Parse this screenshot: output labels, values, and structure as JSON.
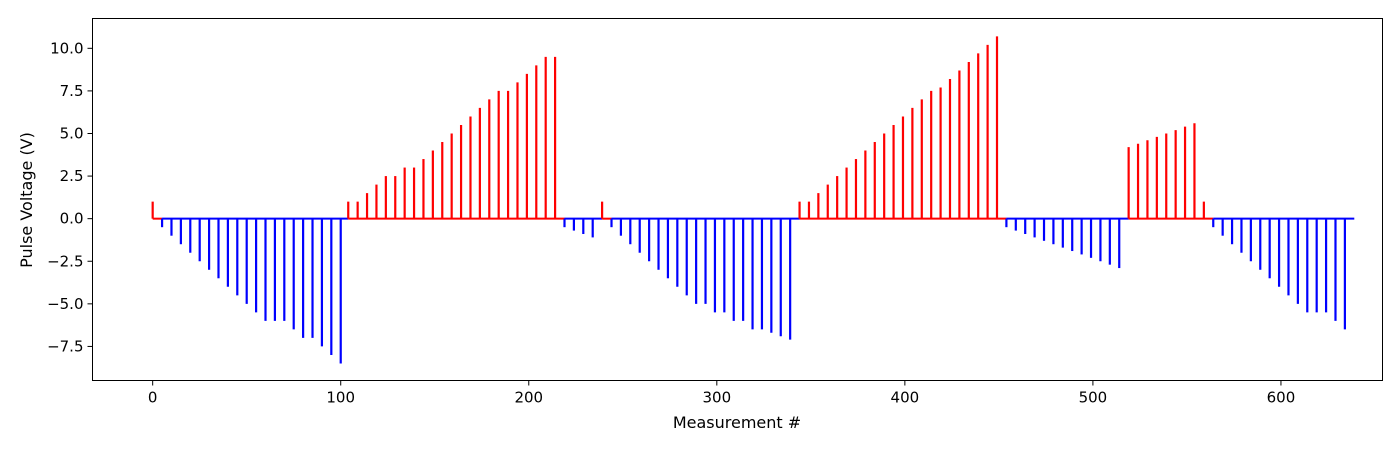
{
  "chart_data": {
    "type": "bar",
    "xlabel": "Measurement #",
    "ylabel": "Pulse Voltage (V)",
    "xlim": [
      -32,
      654
    ],
    "ylim": [
      -9.5,
      11.75
    ],
    "xticks": [
      0,
      100,
      200,
      300,
      400,
      500,
      600
    ],
    "xtick_labels": [
      "0",
      "100",
      "200",
      "300",
      "400",
      "500",
      "600"
    ],
    "yticks": [
      -7.5,
      -5.0,
      -2.5,
      0.0,
      2.5,
      5.0,
      7.5,
      10.0
    ],
    "ytick_labels": [
      "−7.5",
      "−5.0",
      "−2.5",
      "0.0",
      "2.5",
      "5.0",
      "7.5",
      "10.0"
    ],
    "grid": false,
    "colors": {
      "positive": "#ff0000",
      "negative": "#0000ff"
    },
    "baseline_segments": [
      {
        "x0": 0,
        "x1": 5,
        "color": "#ff0000"
      },
      {
        "x0": 5,
        "x1": 104,
        "color": "#0000ff"
      },
      {
        "x0": 104,
        "x1": 219,
        "color": "#ff0000"
      },
      {
        "x0": 219,
        "x1": 239,
        "color": "#0000ff"
      },
      {
        "x0": 239,
        "x1": 244,
        "color": "#ff0000"
      },
      {
        "x0": 244,
        "x1": 344,
        "color": "#0000ff"
      },
      {
        "x0": 344,
        "x1": 454,
        "color": "#ff0000"
      },
      {
        "x0": 454,
        "x1": 519,
        "color": "#0000ff"
      },
      {
        "x0": 519,
        "x1": 564,
        "color": "#ff0000"
      },
      {
        "x0": 564,
        "x1": 639,
        "color": "#0000ff"
      }
    ],
    "pulses": [
      {
        "x": 0,
        "y": 1.0
      },
      {
        "x": 5,
        "y": -0.5
      },
      {
        "x": 10,
        "y": -1.0
      },
      {
        "x": 15,
        "y": -1.5
      },
      {
        "x": 20,
        "y": -2.0
      },
      {
        "x": 25,
        "y": -2.5
      },
      {
        "x": 30,
        "y": -3.0
      },
      {
        "x": 35,
        "y": -3.5
      },
      {
        "x": 40,
        "y": -4.0
      },
      {
        "x": 45,
        "y": -4.5
      },
      {
        "x": 50,
        "y": -5.0
      },
      {
        "x": 55,
        "y": -5.5
      },
      {
        "x": 60,
        "y": -6.0
      },
      {
        "x": 65,
        "y": -6.0
      },
      {
        "x": 70,
        "y": -6.0
      },
      {
        "x": 75,
        "y": -6.5
      },
      {
        "x": 80,
        "y": -7.0
      },
      {
        "x": 85,
        "y": -7.0
      },
      {
        "x": 90,
        "y": -7.5
      },
      {
        "x": 95,
        "y": -8.0
      },
      {
        "x": 100,
        "y": -8.5
      },
      {
        "x": 104,
        "y": 1.0
      },
      {
        "x": 109,
        "y": 1.0
      },
      {
        "x": 114,
        "y": 1.5
      },
      {
        "x": 119,
        "y": 2.0
      },
      {
        "x": 124,
        "y": 2.5
      },
      {
        "x": 129,
        "y": 2.5
      },
      {
        "x": 134,
        "y": 3.0
      },
      {
        "x": 139,
        "y": 3.0
      },
      {
        "x": 144,
        "y": 3.5
      },
      {
        "x": 149,
        "y": 4.0
      },
      {
        "x": 154,
        "y": 4.5
      },
      {
        "x": 159,
        "y": 5.0
      },
      {
        "x": 164,
        "y": 5.5
      },
      {
        "x": 169,
        "y": 6.0
      },
      {
        "x": 174,
        "y": 6.5
      },
      {
        "x": 179,
        "y": 7.0
      },
      {
        "x": 184,
        "y": 7.5
      },
      {
        "x": 189,
        "y": 7.5
      },
      {
        "x": 194,
        "y": 8.0
      },
      {
        "x": 199,
        "y": 8.5
      },
      {
        "x": 204,
        "y": 9.0
      },
      {
        "x": 209,
        "y": 9.5
      },
      {
        "x": 214,
        "y": 9.5
      },
      {
        "x": 219,
        "y": -0.5
      },
      {
        "x": 224,
        "y": -0.7
      },
      {
        "x": 229,
        "y": -0.9
      },
      {
        "x": 234,
        "y": -1.1
      },
      {
        "x": 239,
        "y": 1.0
      },
      {
        "x": 244,
        "y": -0.5
      },
      {
        "x": 249,
        "y": -1.0
      },
      {
        "x": 254,
        "y": -1.5
      },
      {
        "x": 259,
        "y": -2.0
      },
      {
        "x": 264,
        "y": -2.5
      },
      {
        "x": 269,
        "y": -3.0
      },
      {
        "x": 274,
        "y": -3.5
      },
      {
        "x": 279,
        "y": -4.0
      },
      {
        "x": 284,
        "y": -4.5
      },
      {
        "x": 289,
        "y": -5.0
      },
      {
        "x": 294,
        "y": -5.0
      },
      {
        "x": 299,
        "y": -5.5
      },
      {
        "x": 304,
        "y": -5.5
      },
      {
        "x": 309,
        "y": -6.0
      },
      {
        "x": 314,
        "y": -6.0
      },
      {
        "x": 319,
        "y": -6.5
      },
      {
        "x": 324,
        "y": -6.5
      },
      {
        "x": 329,
        "y": -6.7
      },
      {
        "x": 334,
        "y": -6.9
      },
      {
        "x": 339,
        "y": -7.1
      },
      {
        "x": 344,
        "y": 1.0
      },
      {
        "x": 349,
        "y": 1.0
      },
      {
        "x": 354,
        "y": 1.5
      },
      {
        "x": 359,
        "y": 2.0
      },
      {
        "x": 364,
        "y": 2.5
      },
      {
        "x": 369,
        "y": 3.0
      },
      {
        "x": 374,
        "y": 3.5
      },
      {
        "x": 379,
        "y": 4.0
      },
      {
        "x": 384,
        "y": 4.5
      },
      {
        "x": 389,
        "y": 5.0
      },
      {
        "x": 394,
        "y": 5.5
      },
      {
        "x": 399,
        "y": 6.0
      },
      {
        "x": 404,
        "y": 6.5
      },
      {
        "x": 409,
        "y": 7.0
      },
      {
        "x": 414,
        "y": 7.5
      },
      {
        "x": 419,
        "y": 7.7
      },
      {
        "x": 424,
        "y": 8.2
      },
      {
        "x": 429,
        "y": 8.7
      },
      {
        "x": 434,
        "y": 9.2
      },
      {
        "x": 439,
        "y": 9.7
      },
      {
        "x": 444,
        "y": 10.2
      },
      {
        "x": 449,
        "y": 10.7
      },
      {
        "x": 454,
        "y": -0.5
      },
      {
        "x": 459,
        "y": -0.7
      },
      {
        "x": 464,
        "y": -0.9
      },
      {
        "x": 469,
        "y": -1.1
      },
      {
        "x": 474,
        "y": -1.3
      },
      {
        "x": 479,
        "y": -1.5
      },
      {
        "x": 484,
        "y": -1.7
      },
      {
        "x": 489,
        "y": -1.9
      },
      {
        "x": 494,
        "y": -2.1
      },
      {
        "x": 499,
        "y": -2.3
      },
      {
        "x": 504,
        "y": -2.5
      },
      {
        "x": 509,
        "y": -2.7
      },
      {
        "x": 514,
        "y": -2.9
      },
      {
        "x": 519,
        "y": 4.2
      },
      {
        "x": 524,
        "y": 4.4
      },
      {
        "x": 529,
        "y": 4.6
      },
      {
        "x": 534,
        "y": 4.8
      },
      {
        "x": 539,
        "y": 5.0
      },
      {
        "x": 544,
        "y": 5.2
      },
      {
        "x": 549,
        "y": 5.4
      },
      {
        "x": 554,
        "y": 5.6
      },
      {
        "x": 559,
        "y": 1.0
      },
      {
        "x": 564,
        "y": -0.5
      },
      {
        "x": 569,
        "y": -1.0
      },
      {
        "x": 574,
        "y": -1.5
      },
      {
        "x": 579,
        "y": -2.0
      },
      {
        "x": 584,
        "y": -2.5
      },
      {
        "x": 589,
        "y": -3.0
      },
      {
        "x": 594,
        "y": -3.5
      },
      {
        "x": 599,
        "y": -4.0
      },
      {
        "x": 604,
        "y": -4.5
      },
      {
        "x": 609,
        "y": -5.0
      },
      {
        "x": 614,
        "y": -5.5
      },
      {
        "x": 619,
        "y": -5.5
      },
      {
        "x": 624,
        "y": -5.5
      },
      {
        "x": 629,
        "y": -6.0
      },
      {
        "x": 634,
        "y": -6.5
      }
    ]
  }
}
